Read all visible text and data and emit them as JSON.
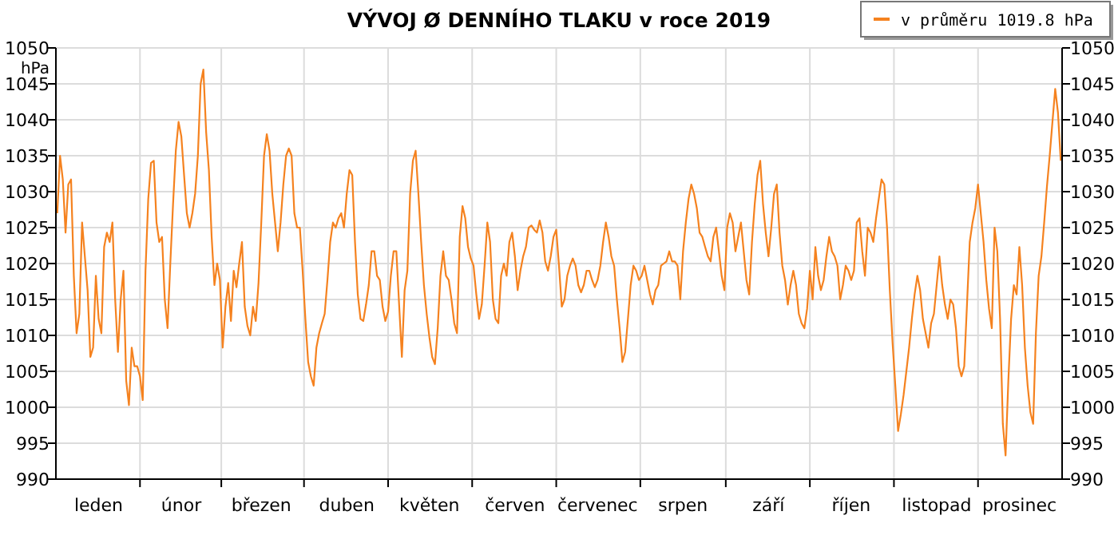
{
  "chart_data": {
    "type": "line",
    "title": "VÝVOJ Ø DENNÍHO TLAKU v roce 2019",
    "ylabel": "hPa",
    "categories": [
      null,
      null,
      null,
      null,
      null,
      null,
      null,
      null,
      null,
      null,
      null,
      null,
      null,
      null,
      null,
      "leden",
      null,
      null,
      null,
      null,
      null,
      null,
      null,
      null,
      null,
      null,
      null,
      null,
      null,
      null,
      null,
      null,
      null,
      null,
      null,
      null,
      null,
      null,
      null,
      null,
      null,
      null,
      null,
      null,
      null,
      "únor",
      null,
      null,
      null,
      null,
      null,
      null,
      null,
      null,
      null,
      null,
      null,
      null,
      null,
      null,
      null,
      null,
      null,
      null,
      null,
      null,
      null,
      null,
      null,
      null,
      null,
      null,
      null,
      null,
      "březen",
      null,
      null,
      null,
      null,
      null,
      null,
      null,
      null,
      null,
      null,
      null,
      null,
      null,
      null,
      null,
      null,
      null,
      null,
      null,
      null,
      null,
      null,
      null,
      null,
      null,
      null,
      null,
      null,
      null,
      null,
      "duben",
      null,
      null,
      null,
      null,
      null,
      null,
      null,
      null,
      null,
      null,
      null,
      null,
      null,
      null,
      null,
      null,
      null,
      null,
      null,
      null,
      null,
      null,
      null,
      null,
      null,
      null,
      null,
      null,
      null,
      "květen",
      null,
      null,
      null,
      null,
      null,
      null,
      null,
      null,
      null,
      null,
      null,
      null,
      null,
      null,
      null,
      null,
      null,
      null,
      null,
      null,
      null,
      null,
      null,
      null,
      null,
      null,
      null,
      null,
      null,
      null,
      "červen",
      null,
      null,
      null,
      null,
      null,
      null,
      null,
      null,
      null,
      null,
      null,
      null,
      null,
      null,
      null,
      null,
      null,
      null,
      null,
      null,
      null,
      null,
      null,
      null,
      null,
      null,
      null,
      null,
      null,
      "červenec",
      null,
      null,
      null,
      null,
      null,
      null,
      null,
      null,
      null,
      null,
      null,
      null,
      null,
      null,
      null,
      null,
      null,
      null,
      null,
      null,
      null,
      null,
      null,
      null,
      null,
      null,
      null,
      null,
      null,
      null,
      "srpen",
      null,
      null,
      null,
      null,
      null,
      null,
      null,
      null,
      null,
      null,
      null,
      null,
      null,
      null,
      null,
      null,
      null,
      null,
      null,
      null,
      null,
      null,
      null,
      null,
      null,
      null,
      null,
      null,
      null,
      null,
      "září",
      null,
      null,
      null,
      null,
      null,
      null,
      null,
      null,
      null,
      null,
      null,
      null,
      null,
      null,
      null,
      null,
      null,
      null,
      null,
      null,
      null,
      null,
      null,
      null,
      null,
      null,
      null,
      null,
      null,
      "říjen",
      null,
      null,
      null,
      null,
      null,
      null,
      null,
      null,
      null,
      null,
      null,
      null,
      null,
      null,
      null,
      null,
      null,
      null,
      null,
      null,
      null,
      null,
      null,
      null,
      null,
      null,
      null,
      null,
      null,
      null,
      "listopad",
      null,
      null,
      null,
      null,
      null,
      null,
      null,
      null,
      null,
      null,
      null,
      null,
      null,
      null,
      null,
      null,
      null,
      null,
      null,
      null,
      null,
      null,
      null,
      null,
      null,
      null,
      null,
      null,
      null,
      "prosinec",
      null,
      null,
      null,
      null,
      null,
      null,
      null,
      null,
      null,
      null,
      null,
      null,
      null,
      null,
      null
    ],
    "ylim": [
      990,
      1050
    ],
    "yticks": [
      990,
      995,
      1000,
      1005,
      1010,
      1015,
      1020,
      1025,
      1030,
      1035,
      1040,
      1045,
      1050
    ],
    "y2lim": [
      990,
      1050
    ],
    "y2ticks": [
      990,
      995,
      1000,
      1005,
      1010,
      1015,
      1020,
      1025,
      1030,
      1035,
      1040,
      1045,
      1050
    ],
    "grid": true,
    "legend": "top right",
    "marker": "none",
    "line_style": "solid",
    "series": [
      {
        "name": "v průměru 1019.8 hPa",
        "color": "#f5821f",
        "values": [
          1027,
          1035,
          1031.7,
          1024.3,
          1031,
          1031.7,
          1018.3,
          1010.3,
          1013,
          1025.7,
          1021,
          1016.3,
          1007,
          1008.3,
          1018.3,
          1012.3,
          1010.3,
          1022.3,
          1024.3,
          1023,
          1025.7,
          1015,
          1007.7,
          1015,
          1019,
          1003.7,
          1000.3,
          1008.3,
          1005.7,
          1005.7,
          1004.3,
          1001,
          1019,
          1029,
          1034,
          1034.3,
          1025.7,
          1023,
          1023.7,
          1015,
          1011,
          1020,
          1028.3,
          1035.7,
          1039.7,
          1037.7,
          1032.3,
          1027,
          1025,
          1027,
          1029.7,
          1035,
          1045,
          1047,
          1038.3,
          1033,
          1023.7,
          1017,
          1020,
          1017.7,
          1008.3,
          1014,
          1017.3,
          1012,
          1019,
          1016.7,
          1020,
          1023,
          1014,
          1011.3,
          1010,
          1014,
          1012,
          1017.3,
          1025.7,
          1035,
          1038,
          1035.7,
          1029.7,
          1025.7,
          1021.7,
          1025.7,
          1031,
          1035,
          1036,
          1035,
          1027,
          1025,
          1025,
          1019,
          1012.3,
          1006.3,
          1004.3,
          1003,
          1008.3,
          1010.3,
          1011.7,
          1013,
          1017.7,
          1023,
          1025.7,
          1025,
          1026.3,
          1027,
          1025,
          1029.7,
          1033,
          1032.3,
          1023,
          1015.7,
          1012.3,
          1012,
          1014.3,
          1017,
          1021.7,
          1021.7,
          1018.3,
          1017.7,
          1014,
          1012,
          1013.3,
          1018.3,
          1021.7,
          1021.7,
          1014.3,
          1007,
          1016.3,
          1019,
          1029.7,
          1034.3,
          1035.7,
          1029.7,
          1023,
          1017,
          1013,
          1009.7,
          1007,
          1006,
          1011,
          1018.3,
          1021.7,
          1018.3,
          1017.7,
          1015,
          1011.7,
          1010.3,
          1023.7,
          1028,
          1026.3,
          1022.3,
          1020.7,
          1019.7,
          1015.7,
          1012.3,
          1014.3,
          1019.7,
          1025.7,
          1023,
          1015,
          1012.3,
          1011.7,
          1018.3,
          1020,
          1018.3,
          1023,
          1024.3,
          1021,
          1016.3,
          1019,
          1021,
          1022.3,
          1025,
          1025.3,
          1024.7,
          1024.3,
          1026,
          1024.3,
          1020.3,
          1019,
          1021,
          1023.7,
          1024.7,
          1019.7,
          1014,
          1015,
          1018.3,
          1019.7,
          1020.7,
          1019.7,
          1017,
          1016,
          1017,
          1019,
          1019,
          1017.7,
          1016.7,
          1017.7,
          1019.7,
          1023,
          1025.7,
          1023.7,
          1021,
          1019.7,
          1015,
          1011,
          1006.3,
          1007.7,
          1012.3,
          1017,
          1019.7,
          1019,
          1017.7,
          1018.3,
          1019.7,
          1017.7,
          1015.7,
          1014.3,
          1016.3,
          1017,
          1019.7,
          1020,
          1020.3,
          1021.7,
          1020.3,
          1020.3,
          1019.7,
          1015,
          1021.7,
          1025.7,
          1029,
          1031,
          1029.7,
          1027.7,
          1024.3,
          1023.7,
          1022.3,
          1021,
          1020.3,
          1023.7,
          1025,
          1021.7,
          1018.3,
          1016.3,
          1025,
          1027,
          1025.7,
          1021.7,
          1023.7,
          1025.7,
          1021.7,
          1017.7,
          1015.7,
          1023,
          1028.3,
          1032.3,
          1034.3,
          1028.3,
          1024.3,
          1021,
          1025,
          1029.7,
          1031,
          1024.3,
          1019.7,
          1017.7,
          1014.3,
          1017,
          1019,
          1017,
          1013,
          1011.7,
          1011,
          1013.7,
          1019,
          1015,
          1022.3,
          1018.3,
          1016.3,
          1017.7,
          1021,
          1023.7,
          1021.7,
          1021,
          1019.7,
          1015,
          1017,
          1019.7,
          1019,
          1017.7,
          1019,
          1025.7,
          1026.3,
          1021.7,
          1018.3,
          1025,
          1024.3,
          1023,
          1026.3,
          1029,
          1031.7,
          1031,
          1025,
          1016.3,
          1009,
          1003,
          996.7,
          999,
          1001.7,
          1005,
          1008.3,
          1012.3,
          1015.7,
          1018.3,
          1016.3,
          1012.3,
          1010.3,
          1008.3,
          1011.7,
          1013,
          1017,
          1021,
          1017,
          1014.3,
          1012.3,
          1015,
          1014.3,
          1011,
          1005.7,
          1004.3,
          1005.7,
          1014.3,
          1023,
          1025.7,
          1027.7,
          1031,
          1027,
          1023,
          1017.7,
          1013.7,
          1011,
          1025,
          1021.7,
          1012.3,
          997.7,
          993.3,
          1003.7,
          1012.3,
          1017,
          1015.7,
          1022.3,
          1017,
          1008.3,
          1003,
          999.3,
          997.7,
          1010.3,
          1018.3,
          1021,
          1025.7,
          1030.7,
          1035,
          1039.7,
          1044.3,
          1041,
          1034.3
        ]
      }
    ]
  }
}
